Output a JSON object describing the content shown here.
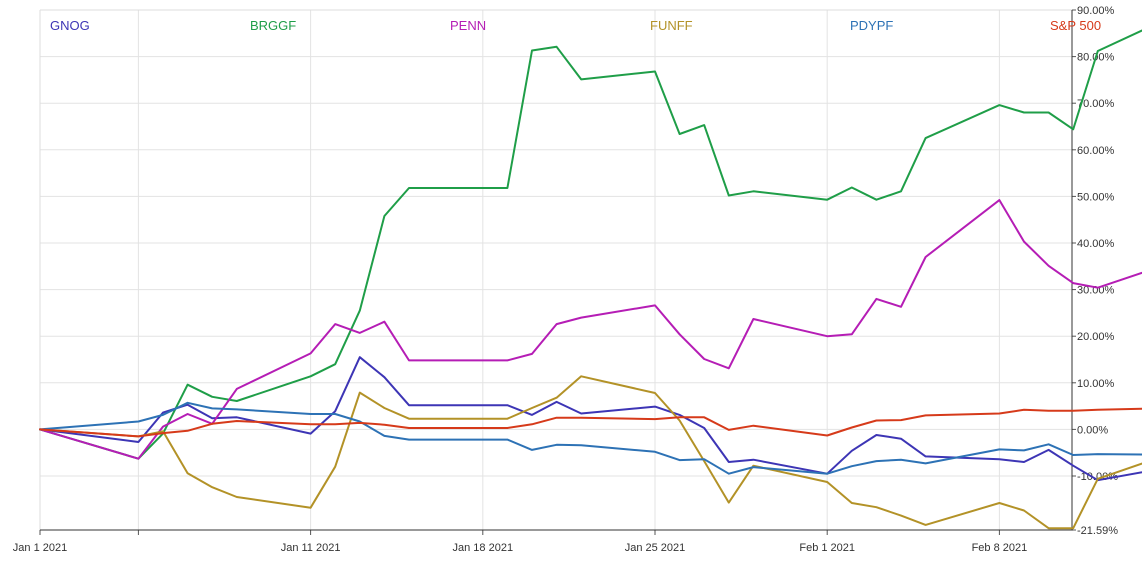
{
  "chart_data": {
    "type": "line",
    "title": "",
    "xlabel": "",
    "ylabel": "",
    "y_unit": "percent change",
    "ylim": [
      -21.59,
      90.0
    ],
    "grid": true,
    "legend_placement": "top, single row",
    "x_tick_labels": [
      "Jan 1 2021",
      "Jan 11 2021",
      "Jan 18 2021",
      "Jan 25 2021",
      "Feb 1 2021",
      "Feb 8 2021"
    ],
    "y_tick_labels": [
      "90.00%",
      "80.00%",
      "70.00%",
      "60.00%",
      "50.00%",
      "40.00%",
      "30.00%",
      "20.00%",
      "10.00%",
      "0.00%",
      "-10.00%",
      "-21.59%"
    ],
    "x": [
      "2020-12-31",
      "2021-01-04",
      "2021-01-05",
      "2021-01-06",
      "2021-01-07",
      "2021-01-08",
      "2021-01-11",
      "2021-01-12",
      "2021-01-13",
      "2021-01-14",
      "2021-01-15",
      "2021-01-19",
      "2021-01-20",
      "2021-01-21",
      "2021-01-22",
      "2021-01-25",
      "2021-01-26",
      "2021-01-27",
      "2021-01-28",
      "2021-01-29",
      "2021-02-01",
      "2021-02-02",
      "2021-02-03",
      "2021-02-04",
      "2021-02-05",
      "2021-02-08",
      "2021-02-09",
      "2021-02-10",
      "2021-02-11",
      "2021-02-12",
      "2021-02-16"
    ],
    "series": [
      {
        "name": "GNOG",
        "color": "#3d35b5",
        "values": [
          0,
          -2.7,
          3.6,
          5.3,
          2.4,
          2.6,
          -0.9,
          3.9,
          15.5,
          11.2,
          5.2,
          5.2,
          3.1,
          5.9,
          3.4,
          4.9,
          3.1,
          0.3,
          -7.0,
          -6.5,
          -9.5,
          -4.6,
          -1.2,
          -2.0,
          -5.8,
          -6.4,
          -7.0,
          -4.4,
          -7.8,
          -10.9,
          -7.1
        ]
      },
      {
        "name": "BRGGF",
        "color": "#1f9e48",
        "values": [
          0,
          -6.3,
          -0.9,
          9.6,
          7.0,
          6.1,
          11.4,
          14.0,
          25.5,
          45.8,
          51.8,
          51.8,
          81.3,
          82.1,
          75.1,
          76.8,
          63.4,
          65.3,
          50.2,
          51.1,
          49.3,
          51.9,
          49.3,
          51.1,
          62.5,
          69.6,
          68.0,
          68.0,
          64.4,
          81.2,
          91.0
        ]
      },
      {
        "name": "PENN",
        "color": "#b51db5",
        "values": [
          0,
          -6.3,
          0.6,
          3.3,
          1.2,
          8.7,
          16.3,
          22.6,
          20.7,
          23.1,
          14.8,
          14.8,
          16.2,
          22.6,
          24.0,
          26.6,
          20.4,
          15.1,
          13.1,
          23.7,
          20.0,
          20.4,
          28.0,
          26.3,
          37.0,
          49.2,
          40.3,
          35.1,
          31.4,
          30.4,
          37.5
        ]
      },
      {
        "name": "FUNFF",
        "color": "#b39227",
        "values": [
          0,
          -1.5,
          -0.4,
          -9.4,
          -12.4,
          -14.5,
          -16.8,
          -8.0,
          7.9,
          4.6,
          2.3,
          2.3,
          4.6,
          6.8,
          11.4,
          7.8,
          1.9,
          -6.8,
          -15.7,
          -7.8,
          -11.3,
          -15.8,
          -16.7,
          -18.5,
          -20.5,
          -15.8,
          -17.4,
          -21.2,
          -21.2,
          -10.6,
          -3.3
        ]
      },
      {
        "name": "PDYPF",
        "color": "#2d72b5",
        "values": [
          0,
          1.7,
          3.1,
          5.7,
          4.5,
          4.3,
          3.3,
          3.3,
          1.7,
          -1.4,
          -2.2,
          -2.2,
          -4.4,
          -3.3,
          -3.4,
          -4.8,
          -6.6,
          -6.4,
          -9.5,
          -8.1,
          -9.5,
          -7.9,
          -6.8,
          -6.5,
          -7.3,
          -4.3,
          -4.5,
          -3.2,
          -5.5,
          -5.3,
          -5.5
        ]
      },
      {
        "name": "S&P 500",
        "color": "#d63a1a",
        "values": [
          0,
          -1.5,
          -0.8,
          -0.3,
          1.2,
          1.8,
          1.1,
          1.1,
          1.4,
          1.0,
          0.3,
          0.3,
          1.1,
          2.5,
          2.5,
          2.2,
          2.6,
          2.6,
          -0.1,
          0.8,
          -1.3,
          0.4,
          1.9,
          2.0,
          3.0,
          3.4,
          4.2,
          4.0,
          4.0,
          4.2,
          4.7
        ]
      }
    ]
  }
}
